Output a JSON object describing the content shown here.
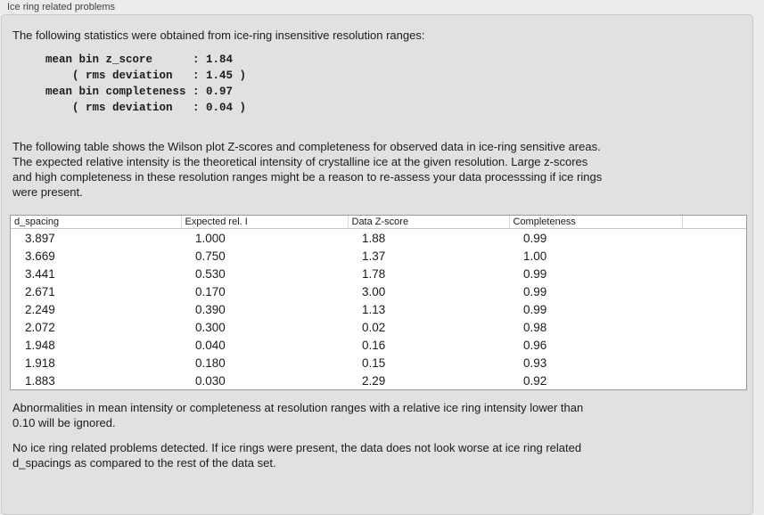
{
  "panel": {
    "title": "Ice ring related problems"
  },
  "stats": {
    "intro": "The following statistics were obtained from ice-ring insensitive resolution ranges:",
    "mono_lines": [
      "mean bin z_score      : 1.84",
      "    ( rms deviation   : 1.45 )",
      "mean bin completeness : 0.97",
      "    ( rms deviation   : 0.04 )"
    ]
  },
  "description": {
    "lines": [
      "The following table shows the Wilson plot Z-scores and completeness for observed data in ice-ring sensitive areas.",
      "The expected relative intensity is the theoretical intensity of crystalline ice at the given resolution. Large z-scores",
      "and high completeness in these resolution ranges might be a reason to re-assess your data processsing if ice rings",
      "were present."
    ]
  },
  "table": {
    "columns": [
      "d_spacing",
      "Expected rel. I",
      "Data Z-score",
      "Completeness",
      ""
    ],
    "rows": [
      [
        "3.897",
        "1.000",
        "1.88",
        "0.99"
      ],
      [
        "3.669",
        "0.750",
        "1.37",
        "1.00"
      ],
      [
        "3.441",
        "0.530",
        "1.78",
        "0.99"
      ],
      [
        "2.671",
        "0.170",
        "3.00",
        "0.99"
      ],
      [
        "2.249",
        "0.390",
        "1.13",
        "0.99"
      ],
      [
        "2.072",
        "0.300",
        "0.02",
        "0.98"
      ],
      [
        "1.948",
        "0.040",
        "0.16",
        "0.96"
      ],
      [
        "1.918",
        "0.180",
        "0.15",
        "0.93"
      ],
      [
        "1.883",
        "0.030",
        "2.29",
        "0.92"
      ]
    ]
  },
  "notes": {
    "ignore_lines": [
      "Abnormalities in mean intensity or completeness at resolution ranges with a relative ice ring intensity lower than",
      "0.10 will be ignored."
    ],
    "conclusion_lines": [
      "No ice ring related problems detected. If ice rings were present, the data does not look worse at ice ring related",
      "d_spacings as compared to the rest of the data set."
    ]
  },
  "colors": {
    "outer_bg": "#ececec",
    "box_bg": "#e1e1e1",
    "box_border": "#c9c9c9",
    "table_bg": "#ffffff",
    "table_border": "#9a9a9a",
    "header_divider": "#d9d9d9",
    "header_border": "#c6c6c6",
    "text": "#1b1b1b",
    "label_text": "#404040"
  }
}
